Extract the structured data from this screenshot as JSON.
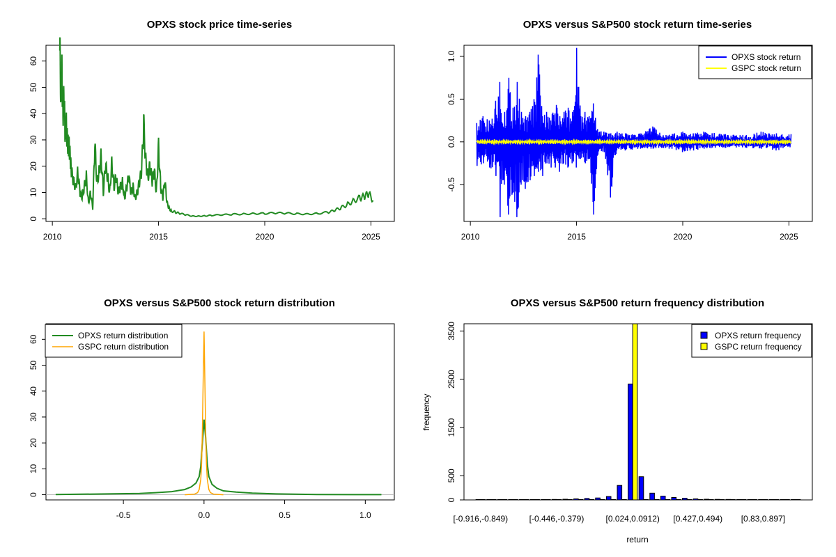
{
  "colors": {
    "green": "#228B22",
    "blue": "#0000FF",
    "yellow": "#FFFF00",
    "orange": "#FFA500",
    "axis": "#000000"
  },
  "chart_data": [
    {
      "id": "price",
      "type": "line",
      "title": "OPXS stock price time-series",
      "xlabel": "",
      "ylabel": "",
      "xlim": [
        2009.7,
        2026.1
      ],
      "ylim": [
        -1,
        66
      ],
      "xticks": [
        2010,
        2015,
        2020,
        2025
      ],
      "yticks": [
        0,
        10,
        20,
        30,
        40,
        50,
        60
      ],
      "grid": false,
      "series": [
        {
          "color": "#228B22",
          "x": [
            2010.35,
            2010.4,
            2010.45,
            2010.5,
            2010.55,
            2010.6,
            2010.65,
            2010.7,
            2010.75,
            2010.8,
            2010.85,
            2010.9,
            2011.0,
            2011.1,
            2011.2,
            2011.3,
            2011.4,
            2011.5,
            2011.6,
            2011.7,
            2011.8,
            2011.9,
            2012.0,
            2012.1,
            2012.2,
            2012.3,
            2012.4,
            2012.5,
            2012.6,
            2012.7,
            2012.8,
            2012.9,
            2013.0,
            2013.1,
            2013.2,
            2013.3,
            2013.4,
            2013.5,
            2013.6,
            2013.7,
            2013.8,
            2013.9,
            2014.0,
            2014.1,
            2014.2,
            2014.3,
            2014.4,
            2014.5,
            2014.6,
            2014.7,
            2014.8,
            2014.9,
            2015.0,
            2015.1,
            2015.2,
            2015.3,
            2015.4,
            2015.5,
            2015.6,
            2015.8,
            2016.0,
            2016.3,
            2016.6,
            2016.9,
            2017.2,
            2017.5,
            2018.0,
            2018.5,
            2019.0,
            2019.5,
            2020.0,
            2020.5,
            2021.0,
            2021.5,
            2022.0,
            2022.5,
            2023.0,
            2023.3,
            2023.6,
            2023.9,
            2024.2,
            2024.5,
            2024.7,
            2024.9,
            2025.1
          ],
          "y": [
            64,
            48,
            56,
            40,
            46,
            32,
            36,
            30,
            28,
            27,
            22,
            18,
            14,
            12,
            18,
            10,
            8,
            12,
            16,
            6,
            10,
            4,
            28,
            14,
            18,
            24,
            10,
            20,
            16,
            10,
            22,
            12,
            16,
            10,
            12,
            14,
            8,
            12,
            16,
            10,
            12,
            8,
            10,
            14,
            18,
            36,
            22,
            16,
            20,
            14,
            18,
            10,
            28,
            12,
            8,
            14,
            6,
            4,
            3,
            2.5,
            2,
            1.5,
            1,
            1,
            1.1,
            1.3,
            1.5,
            1.7,
            1.8,
            2,
            2,
            2.2,
            2.1,
            1.9,
            1.8,
            2,
            2.5,
            3.2,
            4.2,
            5.5,
            7,
            8,
            8.5,
            9.5,
            7
          ]
        }
      ]
    },
    {
      "id": "returns",
      "type": "line",
      "title": "OPXS versus S&P500 stock return time-series",
      "xlabel": "",
      "ylabel": "",
      "xlim": [
        2009.7,
        2026.1
      ],
      "ylim": [
        -0.93,
        1.13
      ],
      "xticks": [
        2010,
        2015,
        2020,
        2025
      ],
      "yticks": [
        -0.5,
        0.0,
        0.5,
        1.0
      ],
      "grid": false,
      "legend_position": "top-right",
      "series": [
        {
          "name": "OPXS stock return",
          "color": "#0000FF",
          "envelope": [
            [
              2010.3,
              0.22,
              -0.3
            ],
            [
              2010.6,
              0.3,
              -0.25
            ],
            [
              2010.9,
              0.25,
              -0.3
            ],
            [
              2011.2,
              0.48,
              -0.4
            ],
            [
              2011.4,
              0.7,
              -0.88
            ],
            [
              2011.6,
              0.35,
              -0.5
            ],
            [
              2011.8,
              0.75,
              -0.85
            ],
            [
              2012.0,
              0.4,
              -0.6
            ],
            [
              2012.2,
              0.7,
              -0.88
            ],
            [
              2012.4,
              0.35,
              -0.5
            ],
            [
              2012.6,
              0.3,
              -0.55
            ],
            [
              2012.8,
              0.35,
              -0.45
            ],
            [
              2013.0,
              0.5,
              -0.4
            ],
            [
              2013.2,
              1.02,
              -0.35
            ],
            [
              2013.4,
              0.3,
              -0.4
            ],
            [
              2013.6,
              0.35,
              -0.25
            ],
            [
              2013.8,
              0.25,
              -0.3
            ],
            [
              2014.0,
              0.55,
              -0.3
            ],
            [
              2014.2,
              0.3,
              -0.35
            ],
            [
              2014.4,
              0.35,
              -0.25
            ],
            [
              2014.6,
              0.4,
              -0.3
            ],
            [
              2014.8,
              0.35,
              -0.25
            ],
            [
              2015.0,
              1.1,
              -0.3
            ],
            [
              2015.2,
              0.3,
              -0.2
            ],
            [
              2015.4,
              0.35,
              -0.25
            ],
            [
              2015.6,
              0.3,
              -0.2
            ],
            [
              2015.8,
              0.45,
              -0.85
            ],
            [
              2016.0,
              0.15,
              -0.15
            ],
            [
              2016.3,
              0.12,
              -0.12
            ],
            [
              2016.6,
              0.1,
              -0.65
            ],
            [
              2016.9,
              0.12,
              -0.1
            ],
            [
              2017.3,
              0.1,
              -0.1
            ],
            [
              2018.0,
              0.1,
              -0.08
            ],
            [
              2018.6,
              0.18,
              -0.08
            ],
            [
              2019.2,
              0.08,
              -0.07
            ],
            [
              2020.0,
              0.12,
              -0.12
            ],
            [
              2020.5,
              0.1,
              -0.1
            ],
            [
              2021.0,
              0.12,
              -0.08
            ],
            [
              2022.0,
              0.09,
              -0.07
            ],
            [
              2023.0,
              0.08,
              -0.07
            ],
            [
              2023.7,
              0.12,
              -0.08
            ],
            [
              2024.4,
              0.1,
              -0.1
            ],
            [
              2025.1,
              0.09,
              -0.08
            ]
          ]
        },
        {
          "name": "GSPC stock return",
          "color": "#FFFF00",
          "amplitude": 0.03
        }
      ]
    },
    {
      "id": "density",
      "type": "line",
      "title": "OPXS versus S&P500 stock return distribution",
      "xlabel": "",
      "ylabel": "",
      "xlim": [
        -0.98,
        1.18
      ],
      "ylim": [
        -2,
        66
      ],
      "xticks": [
        -0.5,
        0.0,
        0.5,
        1.0
      ],
      "yticks": [
        0,
        10,
        20,
        30,
        40,
        50,
        60
      ],
      "grid": false,
      "legend_position": "top-left",
      "series": [
        {
          "name": "OPXS return distribution",
          "color": "#228B22",
          "x": [
            -0.92,
            -0.6,
            -0.4,
            -0.3,
            -0.2,
            -0.12,
            -0.08,
            -0.05,
            -0.03,
            -0.02,
            -0.01,
            0.0,
            0.01,
            0.02,
            0.03,
            0.05,
            0.08,
            0.12,
            0.2,
            0.3,
            0.45,
            0.7,
            1.1
          ],
          "y": [
            0.1,
            0.3,
            0.5,
            0.8,
            1.2,
            2,
            3,
            4.5,
            7,
            11,
            20,
            29,
            22,
            12,
            7,
            4,
            2.5,
            1.5,
            1,
            0.6,
            0.3,
            0.1,
            0.05
          ]
        },
        {
          "name": "GSPC return distribution",
          "color": "#FFA500",
          "x": [
            -0.12,
            -0.06,
            -0.04,
            -0.03,
            -0.02,
            -0.015,
            -0.01,
            -0.005,
            0.0,
            0.005,
            0.01,
            0.015,
            0.02,
            0.03,
            0.04,
            0.06,
            0.12
          ],
          "y": [
            0,
            0.2,
            0.8,
            2,
            6,
            12,
            25,
            45,
            63,
            45,
            25,
            12,
            6,
            2,
            0.8,
            0.2,
            0
          ]
        }
      ]
    },
    {
      "id": "frequency",
      "type": "bar",
      "title": "OPXS versus S&P500 return frequency distribution",
      "xlabel": "return",
      "ylabel": "frequency",
      "ylim": [
        0,
        3650
      ],
      "yticks": [
        0,
        500,
        1500,
        2500,
        3500
      ],
      "grid": false,
      "legend_position": "top-right",
      "tick_labels": [
        "[-0.916,-0.849)",
        "[-0.446,-0.379)",
        "[0.024,0.0912)",
        "[0.427,0.494)",
        "[0.83,0.897]"
      ],
      "tick_label_bins": [
        0,
        7,
        14,
        20,
        26
      ],
      "bin_count": 30,
      "series": [
        {
          "name": "OPXS return frequency",
          "color": "#0000FF",
          "values": [
            3,
            3,
            3,
            3,
            4,
            5,
            8,
            10,
            15,
            22,
            30,
            40,
            70,
            300,
            2400,
            480,
            140,
            80,
            50,
            35,
            22,
            15,
            12,
            10,
            8,
            6,
            5,
            4,
            3,
            3
          ]
        },
        {
          "name": "GSPC return frequency",
          "color": "#FFFF00",
          "values": [
            0,
            0,
            0,
            0,
            0,
            0,
            0,
            0,
            0,
            0,
            0,
            0,
            0,
            0,
            3700,
            0,
            0,
            0,
            0,
            0,
            0,
            0,
            0,
            0,
            0,
            0,
            0,
            0,
            0,
            0
          ]
        }
      ]
    }
  ]
}
